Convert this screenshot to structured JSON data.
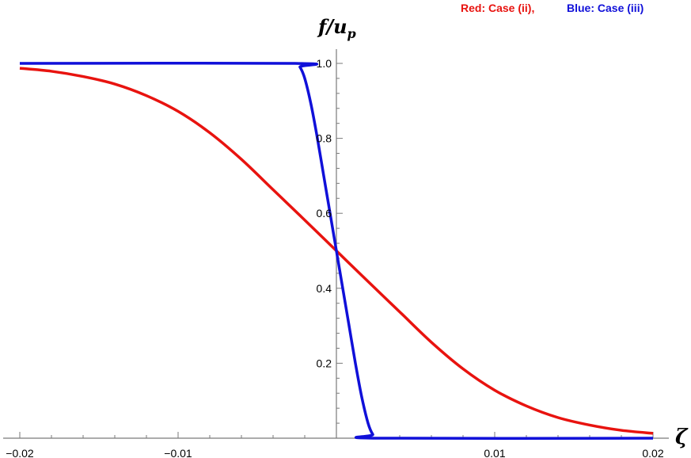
{
  "chart_data": {
    "type": "line",
    "xlabel": "ζ",
    "ylabel": {
      "base": "f/u",
      "sub": "p"
    },
    "xlim": [
      -0.02,
      0.02
    ],
    "ylim": [
      0,
      1.0
    ],
    "grid": false,
    "legend": {
      "placement": "top-right",
      "entries": [
        {
          "text": "Red: Case (ii),",
          "color": "#e8130f"
        },
        {
          "text": "Blue: Case (iii)",
          "color": "#1010d9"
        }
      ]
    },
    "x_ticks": [
      {
        "value": -0.02,
        "label": "−0.02"
      },
      {
        "value": -0.01,
        "label": "−0.01"
      },
      {
        "value": 0.01,
        "label": "0.01"
      },
      {
        "value": 0.02,
        "label": "0.02"
      }
    ],
    "y_ticks": [
      {
        "value": 0.2,
        "label": "0.2"
      },
      {
        "value": 0.4,
        "label": "0.4"
      },
      {
        "value": 0.6,
        "label": "0.6"
      },
      {
        "value": 0.8,
        "label": "0.8"
      },
      {
        "value": 1.0,
        "label": "1.0"
      }
    ],
    "series": [
      {
        "color": "#e8130f",
        "x": [
          -0.02,
          -0.018,
          -0.016,
          -0.014,
          -0.012,
          -0.01,
          -0.008,
          -0.006,
          -0.004,
          -0.002,
          0.0,
          0.002,
          0.004,
          0.006,
          0.008,
          0.01,
          0.012,
          0.014,
          0.016,
          0.018,
          0.02
        ],
        "y": [
          0.987,
          0.979,
          0.965,
          0.945,
          0.914,
          0.872,
          0.815,
          0.744,
          0.663,
          0.582,
          0.5,
          0.418,
          0.337,
          0.256,
          0.185,
          0.128,
          0.086,
          0.055,
          0.035,
          0.021,
          0.013
        ]
      },
      {
        "color": "#1010d9",
        "x": [
          -0.02,
          -0.0026,
          -0.0023,
          -0.002,
          -0.0016,
          -0.0012,
          -0.0008,
          -0.0004,
          0.0,
          0.0004,
          0.0008,
          0.0012,
          0.0016,
          0.002,
          0.0023,
          0.0026,
          0.02
        ],
        "y": [
          1.0,
          1.0,
          0.99,
          0.96,
          0.89,
          0.8,
          0.7,
          0.6,
          0.5,
          0.4,
          0.3,
          0.2,
          0.11,
          0.04,
          0.01,
          0.0,
          0.0
        ]
      }
    ]
  }
}
